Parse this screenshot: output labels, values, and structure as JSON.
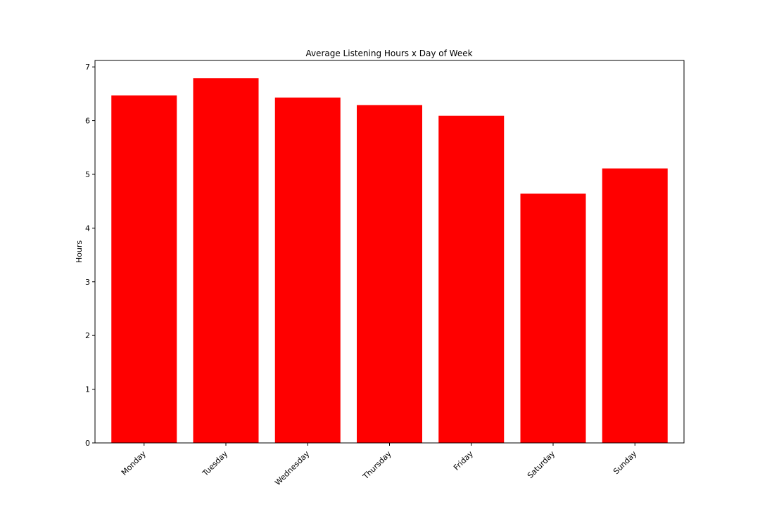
{
  "chart_data": {
    "type": "bar",
    "title": "Average Listening Hours x Day of Week",
    "xlabel": "",
    "ylabel": "Hours",
    "categories": [
      "Monday",
      "Tuesday",
      "Wednesday",
      "Thursday",
      "Friday",
      "Saturday",
      "Sunday"
    ],
    "values": [
      6.47,
      6.79,
      6.43,
      6.29,
      6.09,
      4.64,
      5.11
    ],
    "ylim": [
      0,
      7.12
    ],
    "yticks": [
      "0",
      "1",
      "2",
      "3",
      "4",
      "5",
      "6",
      "7"
    ],
    "bar_color": "#ff0000",
    "grid": false,
    "legend": "none"
  }
}
